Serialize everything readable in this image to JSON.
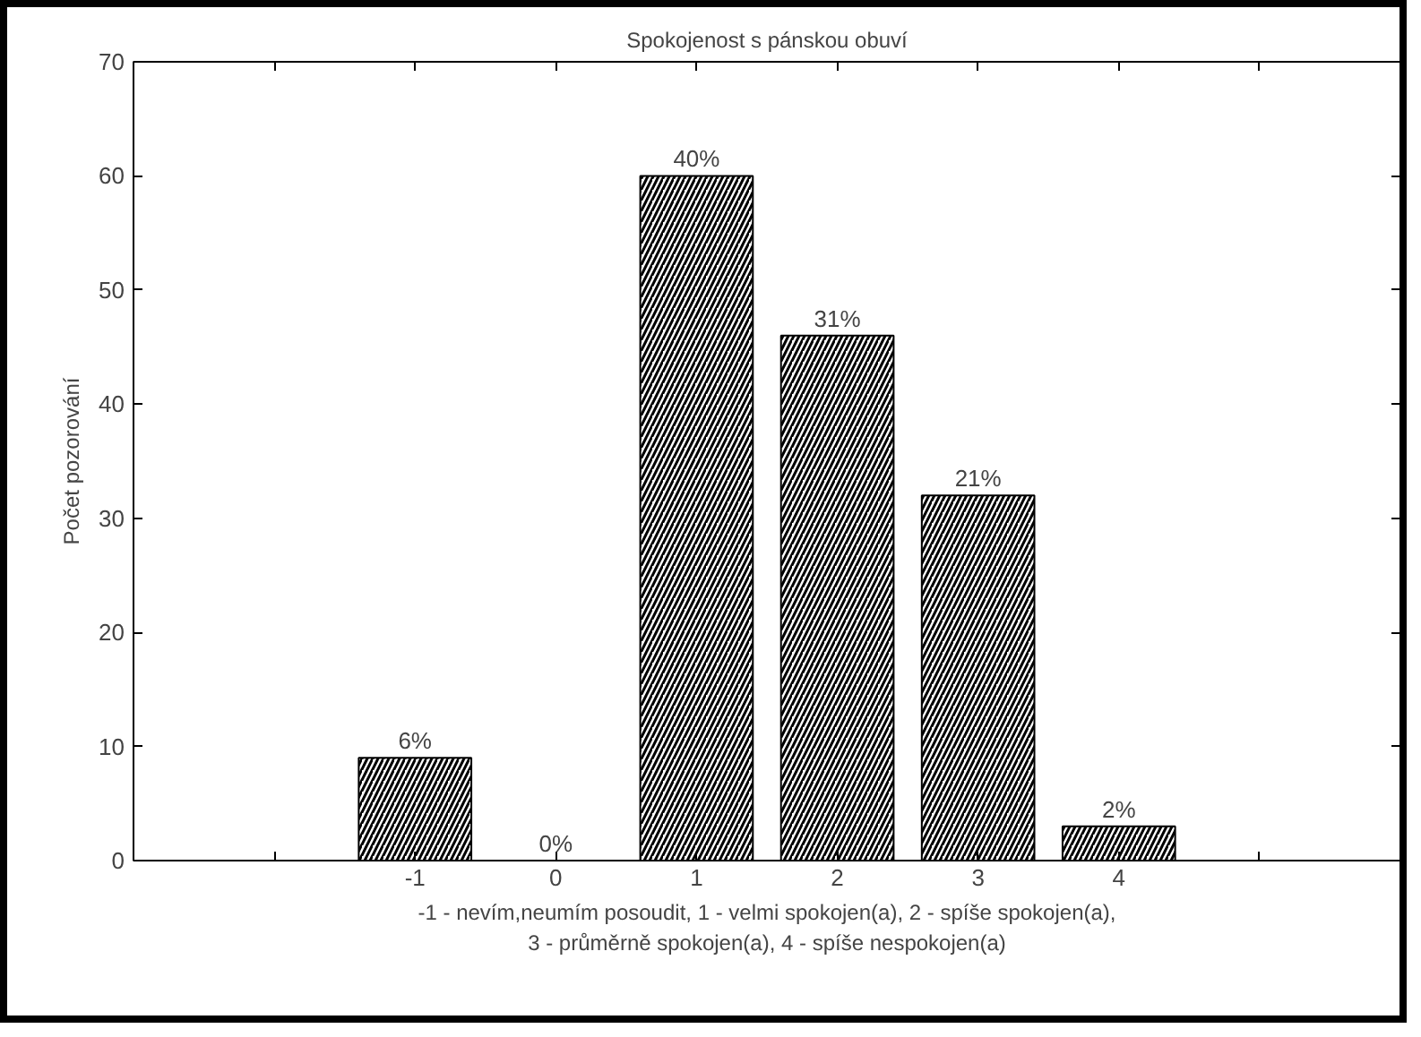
{
  "chart_data": {
    "type": "bar",
    "title": "Spokojenost s pánskou obuví",
    "xlabel": "-1 - nevím,neumím posoudit, 1 - velmi spokojen(a), 2 - spíše spokojen(a),\n3 - průměrně spokojen(a), 4 - spíše nespokojen(a)",
    "ylabel": "Počet pozorování",
    "x": [
      -1,
      0,
      1,
      2,
      3,
      4
    ],
    "values": [
      9,
      0,
      60,
      46,
      32,
      3
    ],
    "annotations": [
      {
        "text": "6%",
        "x": -1,
        "y": 9
      },
      {
        "text": "0%",
        "x": 0,
        "y": 0
      },
      {
        "text": "40%",
        "x": 1,
        "y": 60
      },
      {
        "text": "31%",
        "x": 2,
        "y": 46
      },
      {
        "text": "21%",
        "x": 3,
        "y": 32
      },
      {
        "text": "2%",
        "x": 4,
        "y": 3
      }
    ],
    "color": "#000000",
    "xlim": [
      -3,
      6
    ],
    "xticks": [
      {
        "value": -3,
        "label": null
      },
      {
        "value": -2,
        "label": null
      },
      -1,
      0,
      1,
      2,
      3,
      4,
      {
        "value": 5,
        "label": null
      },
      {
        "value": 6,
        "label": null
      }
    ],
    "ylim": [
      0,
      70
    ],
    "yticks": [
      0,
      10,
      20,
      30,
      40,
      50,
      60,
      70
    ]
  }
}
